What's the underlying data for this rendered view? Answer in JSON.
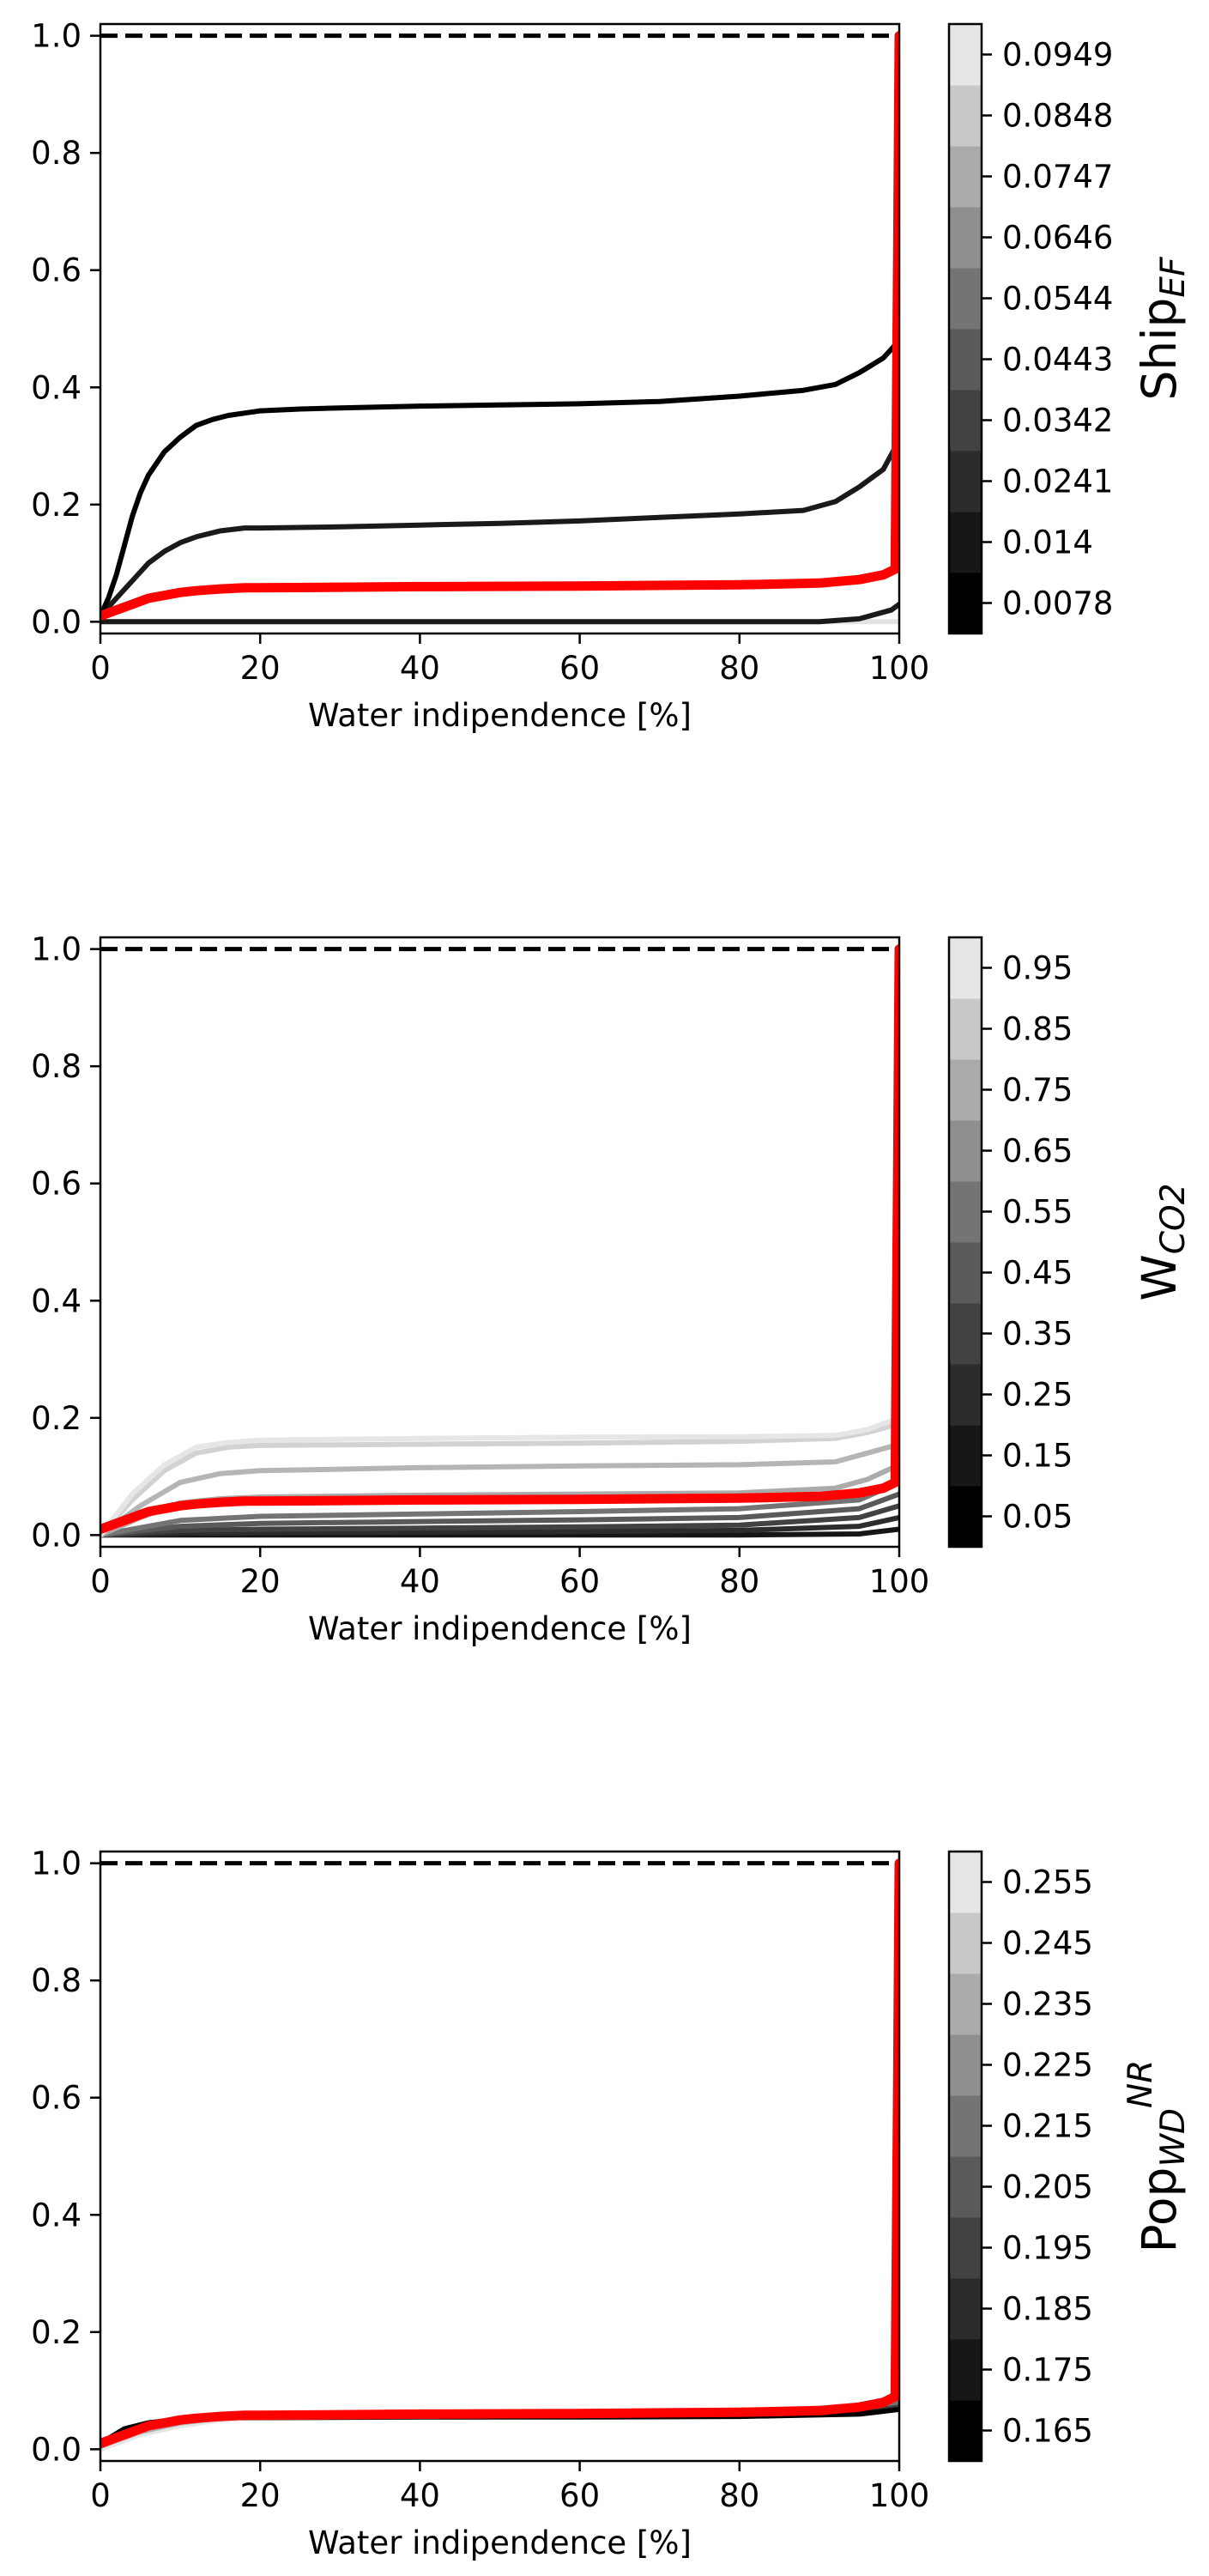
{
  "colors": {
    "reference_line": "#ff0000",
    "dashed_line": "#000000"
  },
  "chart_data": [
    {
      "type": "line",
      "xlabel": "Water indipendence [%]",
      "ylabel": "",
      "xlim": [
        0,
        100
      ],
      "ylim": [
        -0.02,
        1.02
      ],
      "x_ticks": [
        "0",
        "20",
        "40",
        "60",
        "80",
        "100"
      ],
      "y_ticks": [
        "0.0",
        "0.2",
        "0.4",
        "0.6",
        "0.8",
        "1.0"
      ],
      "grid": false,
      "dashed_reference": 1.0,
      "colorbar": {
        "label_main": "Ship",
        "label_sub": "EF",
        "label_sup": "",
        "ticks": [
          "0.0078",
          "0.014",
          "0.0241",
          "0.0342",
          "0.0443",
          "0.0544",
          "0.0646",
          "0.0747",
          "0.0848",
          "0.0949"
        ],
        "colors": [
          "#000000",
          "#161616",
          "#2c2c2c",
          "#424242",
          "#5a5a5a",
          "#747474",
          "#8f8f8f",
          "#ababab",
          "#c8c8c8",
          "#e6e6e6"
        ]
      },
      "series": [
        {
          "color": "#e3e3e3",
          "x": [
            0,
            10,
            20,
            40,
            60,
            80,
            95,
            100
          ],
          "y": [
            0.0,
            0.0,
            0.0,
            0.0,
            0.0,
            0.0,
            0.0,
            0.0
          ]
        },
        {
          "color": "#1a1a1a",
          "x": [
            0,
            20,
            40,
            60,
            80,
            90,
            95,
            99,
            100
          ],
          "y": [
            0.0,
            0.0,
            0.0,
            0.0,
            0.0,
            0.0,
            0.005,
            0.02,
            0.03
          ]
        },
        {
          "color": "#1a1a1a",
          "x": [
            0,
            2,
            4,
            6,
            8,
            10,
            12,
            15,
            18,
            20,
            30,
            40,
            50,
            60,
            70,
            80,
            88,
            92,
            95,
            98,
            100
          ],
          "y": [
            0.01,
            0.04,
            0.07,
            0.1,
            0.12,
            0.135,
            0.145,
            0.155,
            0.16,
            0.16,
            0.162,
            0.165,
            0.168,
            0.172,
            0.178,
            0.184,
            0.19,
            0.205,
            0.23,
            0.26,
            0.31
          ]
        },
        {
          "color": "#000000",
          "x": [
            0,
            1,
            2,
            3,
            4,
            5,
            6,
            8,
            10,
            12,
            14,
            16,
            18,
            20,
            25,
            30,
            40,
            50,
            60,
            70,
            80,
            88,
            92,
            95,
            98,
            100
          ],
          "y": [
            0.01,
            0.04,
            0.08,
            0.13,
            0.18,
            0.22,
            0.25,
            0.29,
            0.315,
            0.335,
            0.345,
            0.352,
            0.356,
            0.36,
            0.363,
            0.365,
            0.368,
            0.37,
            0.372,
            0.376,
            0.385,
            0.395,
            0.405,
            0.425,
            0.45,
            0.48
          ]
        },
        {
          "color": "#ff0000",
          "reference": true,
          "x": [
            0,
            2,
            4,
            6,
            8,
            10,
            12,
            15,
            18,
            20,
            40,
            60,
            80,
            90,
            95,
            98,
            99.5,
            99.8,
            100
          ],
          "y": [
            0.01,
            0.02,
            0.03,
            0.04,
            0.045,
            0.05,
            0.053,
            0.056,
            0.058,
            0.058,
            0.06,
            0.061,
            0.063,
            0.066,
            0.072,
            0.08,
            0.09,
            0.6,
            1.0
          ]
        }
      ]
    },
    {
      "type": "line",
      "xlabel": "Water indipendence [%]",
      "ylabel": "",
      "xlim": [
        0,
        100
      ],
      "ylim": [
        -0.02,
        1.02
      ],
      "x_ticks": [
        "0",
        "20",
        "40",
        "60",
        "80",
        "100"
      ],
      "y_ticks": [
        "0.0",
        "0.2",
        "0.4",
        "0.6",
        "0.8",
        "1.0"
      ],
      "grid": false,
      "dashed_reference": 1.0,
      "colorbar": {
        "label_main": "W",
        "label_sub": "CO2",
        "label_sup": "",
        "ticks": [
          "0.05",
          "0.15",
          "0.25",
          "0.35",
          "0.45",
          "0.55",
          "0.65",
          "0.75",
          "0.85",
          "0.95"
        ],
        "colors": [
          "#000000",
          "#161616",
          "#2c2c2c",
          "#424242",
          "#5a5a5a",
          "#747474",
          "#8f8f8f",
          "#ababab",
          "#c8c8c8",
          "#e6e6e6"
        ]
      },
      "series": [
        {
          "color": "#161616",
          "x": [
            0,
            20,
            40,
            60,
            80,
            95,
            100
          ],
          "y": [
            0.0,
            0.0,
            0.0,
            0.0,
            0.0,
            0.002,
            0.01
          ]
        },
        {
          "color": "#2c2c2c",
          "x": [
            0,
            10,
            20,
            40,
            60,
            80,
            95,
            100
          ],
          "y": [
            0.0,
            0.003,
            0.004,
            0.005,
            0.006,
            0.008,
            0.015,
            0.03
          ]
        },
        {
          "color": "#424242",
          "x": [
            0,
            10,
            20,
            40,
            60,
            80,
            95,
            100
          ],
          "y": [
            0.0,
            0.008,
            0.01,
            0.012,
            0.014,
            0.017,
            0.03,
            0.05
          ]
        },
        {
          "color": "#5a5a5a",
          "x": [
            0,
            10,
            20,
            40,
            60,
            80,
            95,
            100
          ],
          "y": [
            0.0,
            0.015,
            0.02,
            0.023,
            0.026,
            0.03,
            0.045,
            0.07
          ]
        },
        {
          "color": "#747474",
          "x": [
            0,
            10,
            20,
            40,
            60,
            80,
            95,
            100
          ],
          "y": [
            0.0,
            0.025,
            0.032,
            0.036,
            0.04,
            0.045,
            0.06,
            0.09
          ]
        },
        {
          "color": "#ababab",
          "x": [
            0,
            5,
            10,
            15,
            20,
            40,
            60,
            80,
            92,
            96,
            100
          ],
          "y": [
            0.0,
            0.03,
            0.055,
            0.062,
            0.065,
            0.068,
            0.07,
            0.072,
            0.08,
            0.095,
            0.12
          ]
        },
        {
          "color": "#b5b5b5",
          "x": [
            0,
            5,
            10,
            15,
            20,
            40,
            60,
            80,
            92,
            96,
            100
          ],
          "y": [
            0.0,
            0.05,
            0.09,
            0.105,
            0.11,
            0.115,
            0.118,
            0.12,
            0.125,
            0.14,
            0.155
          ]
        },
        {
          "color": "#d2d2d2",
          "x": [
            0,
            4,
            8,
            12,
            16,
            20,
            40,
            60,
            80,
            92,
            96,
            100
          ],
          "y": [
            0.0,
            0.06,
            0.11,
            0.14,
            0.15,
            0.153,
            0.155,
            0.157,
            0.16,
            0.165,
            0.175,
            0.19
          ]
        },
        {
          "color": "#e6e6e6",
          "x": [
            0,
            4,
            8,
            12,
            16,
            20,
            40,
            60,
            80,
            92,
            96,
            100
          ],
          "y": [
            0.0,
            0.07,
            0.12,
            0.15,
            0.158,
            0.162,
            0.165,
            0.167,
            0.168,
            0.17,
            0.18,
            0.2
          ]
        },
        {
          "color": "#ff0000",
          "reference": true,
          "x": [
            0,
            2,
            4,
            6,
            8,
            10,
            12,
            15,
            18,
            20,
            40,
            60,
            80,
            90,
            95,
            98,
            99.5,
            99.8,
            100
          ],
          "y": [
            0.01,
            0.02,
            0.03,
            0.04,
            0.045,
            0.05,
            0.053,
            0.056,
            0.058,
            0.058,
            0.06,
            0.061,
            0.063,
            0.066,
            0.072,
            0.08,
            0.09,
            0.6,
            1.0
          ]
        }
      ]
    },
    {
      "type": "line",
      "xlabel": "Water indipendence [%]",
      "ylabel": "",
      "xlim": [
        0,
        100
      ],
      "ylim": [
        -0.02,
        1.02
      ],
      "x_ticks": [
        "0",
        "20",
        "40",
        "60",
        "80",
        "100"
      ],
      "y_ticks": [
        "0.0",
        "0.2",
        "0.4",
        "0.6",
        "0.8",
        "1.0"
      ],
      "grid": false,
      "dashed_reference": 1.0,
      "colorbar": {
        "label_main": "Pop",
        "label_sub": "WD",
        "label_sup": "NR",
        "ticks": [
          "0.165",
          "0.175",
          "0.185",
          "0.195",
          "0.205",
          "0.215",
          "0.225",
          "0.235",
          "0.245",
          "0.255"
        ],
        "colors": [
          "#000000",
          "#161616",
          "#2c2c2c",
          "#424242",
          "#5a5a5a",
          "#747474",
          "#8f8f8f",
          "#ababab",
          "#c8c8c8",
          "#e6e6e6"
        ]
      },
      "series": [
        {
          "color": "#e6e6e6",
          "x": [
            0,
            5,
            10,
            15,
            20,
            40,
            60,
            80,
            95,
            100
          ],
          "y": [
            0.0,
            0.025,
            0.04,
            0.05,
            0.055,
            0.058,
            0.06,
            0.062,
            0.075,
            0.09
          ]
        },
        {
          "color": "#ababab",
          "x": [
            0,
            5,
            10,
            15,
            20,
            40,
            60,
            80,
            95,
            100
          ],
          "y": [
            0.005,
            0.03,
            0.045,
            0.053,
            0.056,
            0.058,
            0.06,
            0.062,
            0.072,
            0.085
          ]
        },
        {
          "color": "#747474",
          "x": [
            0,
            5,
            10,
            15,
            20,
            40,
            60,
            80,
            95,
            100
          ],
          "y": [
            0.005,
            0.035,
            0.048,
            0.054,
            0.056,
            0.057,
            0.058,
            0.06,
            0.068,
            0.08
          ]
        },
        {
          "color": "#424242",
          "x": [
            0,
            4,
            8,
            12,
            16,
            20,
            40,
            60,
            80,
            95,
            100
          ],
          "y": [
            0.01,
            0.035,
            0.048,
            0.053,
            0.055,
            0.055,
            0.056,
            0.057,
            0.058,
            0.063,
            0.072
          ]
        },
        {
          "color": "#000000",
          "x": [
            0,
            3,
            6,
            9,
            12,
            16,
            20,
            40,
            60,
            80,
            95,
            100
          ],
          "y": [
            0.01,
            0.035,
            0.045,
            0.05,
            0.052,
            0.054,
            0.054,
            0.055,
            0.055,
            0.056,
            0.06,
            0.068
          ]
        },
        {
          "color": "#ff0000",
          "reference": true,
          "x": [
            0,
            2,
            4,
            6,
            8,
            10,
            12,
            15,
            18,
            20,
            40,
            60,
            80,
            90,
            95,
            98,
            99.5,
            99.8,
            100
          ],
          "y": [
            0.01,
            0.02,
            0.03,
            0.04,
            0.045,
            0.05,
            0.053,
            0.056,
            0.058,
            0.058,
            0.06,
            0.061,
            0.063,
            0.066,
            0.072,
            0.08,
            0.09,
            0.6,
            1.0
          ]
        }
      ]
    }
  ]
}
